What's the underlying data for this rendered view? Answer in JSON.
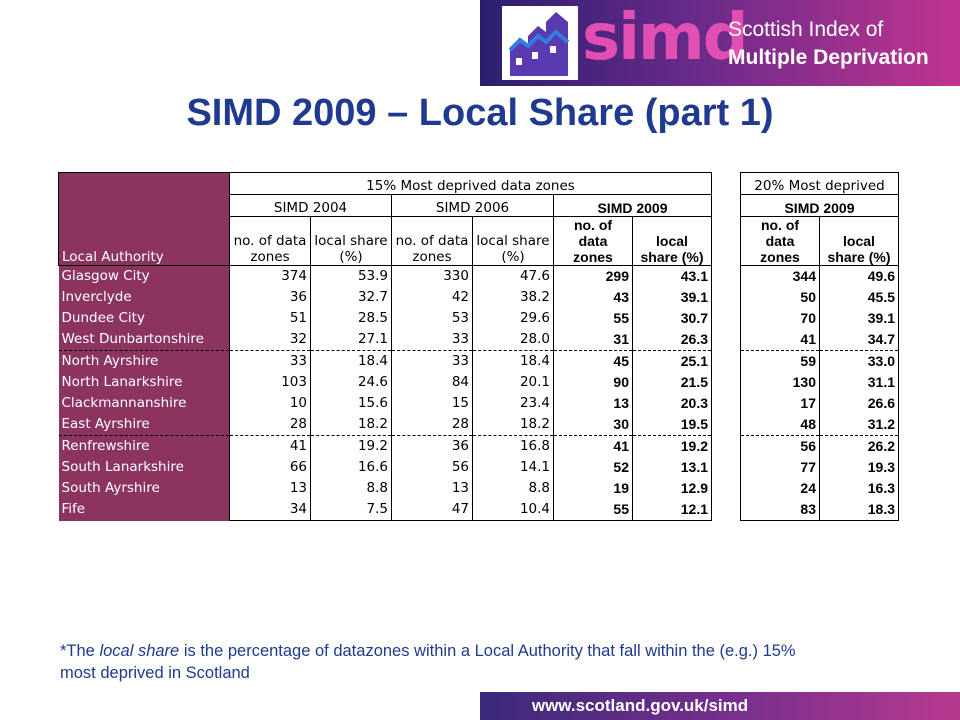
{
  "brand": {
    "logo_word": "simd",
    "subtitle_line1": "Scottish Index of",
    "subtitle_line2": "Multiple Deprivation"
  },
  "title": "SIMD 2009 – Local Share (part 1)",
  "table": {
    "group_15": "15% Most deprived data zones",
    "group_20": "20% Most deprived",
    "sub_2004": "SIMD 2004",
    "sub_2006": "SIMD 2006",
    "sub_2009": "SIMD 2009",
    "col_la": "Local Authority",
    "col_dz_l1": "no. of data",
    "col_dz_l2": "zones",
    "col_ls_l1": "local share",
    "col_ls_l2": "(%)",
    "col_dz09_l1": "no. of",
    "col_dz09_l2": "data",
    "col_dz09_l3": "zones",
    "col_ls09_l1": "local",
    "col_ls09_l2": "share (%)",
    "rows": [
      {
        "la": "Glasgow City",
        "d04": "374",
        "s04": "53.9",
        "d06": "330",
        "s06": "47.6",
        "d09": "299",
        "s09": "43.1",
        "d20": "344",
        "s20": "49.6"
      },
      {
        "la": "Inverclyde",
        "d04": "36",
        "s04": "32.7",
        "d06": "42",
        "s06": "38.2",
        "d09": "43",
        "s09": "39.1",
        "d20": "50",
        "s20": "45.5"
      },
      {
        "la": "Dundee City",
        "d04": "51",
        "s04": "28.5",
        "d06": "53",
        "s06": "29.6",
        "d09": "55",
        "s09": "30.7",
        "d20": "70",
        "s20": "39.1"
      },
      {
        "la": "West Dunbartonshire",
        "d04": "32",
        "s04": "27.1",
        "d06": "33",
        "s06": "28.0",
        "d09": "31",
        "s09": "26.3",
        "d20": "41",
        "s20": "34.7"
      },
      {
        "la": "North Ayrshire",
        "d04": "33",
        "s04": "18.4",
        "d06": "33",
        "s06": "18.4",
        "d09": "45",
        "s09": "25.1",
        "d20": "59",
        "s20": "33.0"
      },
      {
        "la": "North Lanarkshire",
        "d04": "103",
        "s04": "24.6",
        "d06": "84",
        "s06": "20.1",
        "d09": "90",
        "s09": "21.5",
        "d20": "130",
        "s20": "31.1"
      },
      {
        "la": "Clackmannanshire",
        "d04": "10",
        "s04": "15.6",
        "d06": "15",
        "s06": "23.4",
        "d09": "13",
        "s09": "20.3",
        "d20": "17",
        "s20": "26.6"
      },
      {
        "la": "East Ayrshire",
        "d04": "28",
        "s04": "18.2",
        "d06": "28",
        "s06": "18.2",
        "d09": "30",
        "s09": "19.5",
        "d20": "48",
        "s20": "31.2"
      },
      {
        "la": "Renfrewshire",
        "d04": "41",
        "s04": "19.2",
        "d06": "36",
        "s06": "16.8",
        "d09": "41",
        "s09": "19.2",
        "d20": "56",
        "s20": "26.2"
      },
      {
        "la": "South Lanarkshire",
        "d04": "66",
        "s04": "16.6",
        "d06": "56",
        "s06": "14.1",
        "d09": "52",
        "s09": "13.1",
        "d20": "77",
        "s20": "19.3"
      },
      {
        "la": "South Ayrshire",
        "d04": "13",
        "s04": "8.8",
        "d06": "13",
        "s06": "8.8",
        "d09": "19",
        "s09": "12.9",
        "d20": "24",
        "s20": "16.3"
      },
      {
        "la": "Fife",
        "d04": "34",
        "s04": "7.5",
        "d06": "47",
        "s06": "10.4",
        "d09": "55",
        "s09": "12.1",
        "d20": "83",
        "s20": "18.3"
      }
    ]
  },
  "footnote": {
    "prefix": "*The ",
    "em": "local share",
    "rest": " is the percentage of datazones within a Local Authority that fall within the (e.g.) 15% most deprived in Scotland"
  },
  "url": "www.scotland.gov.uk/simd",
  "colors": {
    "title": "#1f3a8f",
    "la_column": "#8b3460",
    "banner_start": "#2a1f6e",
    "banner_end": "#c0348f"
  }
}
